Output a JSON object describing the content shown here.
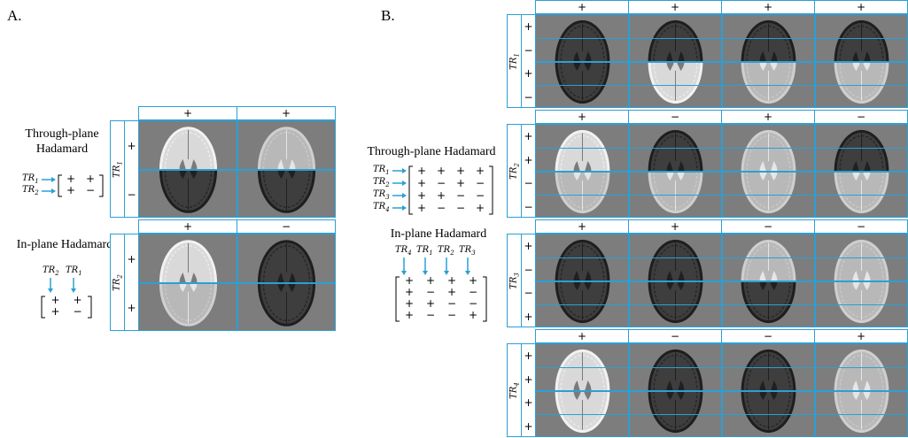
{
  "panelA": {
    "label": "A.",
    "through_title_1": "Through-plane",
    "through_title_2": "Hadamard",
    "inplane_title": "In-plane Hadamard",
    "through_matrix_rows": [
      [
        "+",
        "+"
      ],
      [
        "+",
        "−"
      ]
    ],
    "through_tr": [
      "TR1",
      "TR2"
    ],
    "inplane_tr_cols": [
      "TR2",
      "TR1"
    ],
    "inplane_matrix_rows": [
      [
        "+",
        "+"
      ],
      [
        "+",
        "−"
      ]
    ],
    "grid1": {
      "tr_label": "TR1",
      "col_signs": [
        "+",
        "+"
      ],
      "row_signs": [
        "+",
        "−"
      ]
    },
    "grid2": {
      "tr_label": "TR2",
      "col_signs": [
        "+",
        "−"
      ],
      "row_signs": [
        "+",
        "+"
      ]
    }
  },
  "panelB": {
    "label": "B.",
    "through_title": "Through-plane Hadamard",
    "inplane_title": "In-plane Hadamard",
    "through_tr": [
      "TR1",
      "TR2",
      "TR3",
      "TR4"
    ],
    "through_matrix_rows": [
      [
        "+",
        "+",
        "+",
        "+"
      ],
      [
        "+",
        "−",
        "+",
        "−"
      ],
      [
        "+",
        "+",
        "−",
        "−"
      ],
      [
        "+",
        "−",
        "−",
        "+"
      ]
    ],
    "inplane_tr_cols": [
      "TR4",
      "TR1",
      "TR2",
      "TR3"
    ],
    "inplane_matrix_rows": [
      [
        "+",
        "+",
        "+",
        "+"
      ],
      [
        "+",
        "−",
        "+",
        "−"
      ],
      [
        "+",
        "+",
        "−",
        "−"
      ],
      [
        "+",
        "−",
        "−",
        "+"
      ]
    ],
    "grids": [
      {
        "tr_label": "TR1",
        "col_signs": [
          "+",
          "+",
          "+",
          "+"
        ],
        "row_signs": [
          "+",
          "−",
          "+",
          "−"
        ]
      },
      {
        "tr_label": "TR2",
        "col_signs": [
          "+",
          "−",
          "+",
          "−"
        ],
        "row_signs": [
          "+",
          "+",
          "−",
          "−"
        ]
      },
      {
        "tr_label": "TR3",
        "col_signs": [
          "+",
          "+",
          "−",
          "−"
        ],
        "row_signs": [
          "+",
          "−",
          "−",
          "+"
        ]
      },
      {
        "tr_label": "TR4",
        "col_signs": [
          "+",
          "−",
          "−",
          "+"
        ],
        "row_signs": [
          "+",
          "+",
          "+",
          "+"
        ]
      }
    ]
  },
  "colors": {
    "accent": "#2aa0d5",
    "background_gray": "#7d7d7d"
  }
}
